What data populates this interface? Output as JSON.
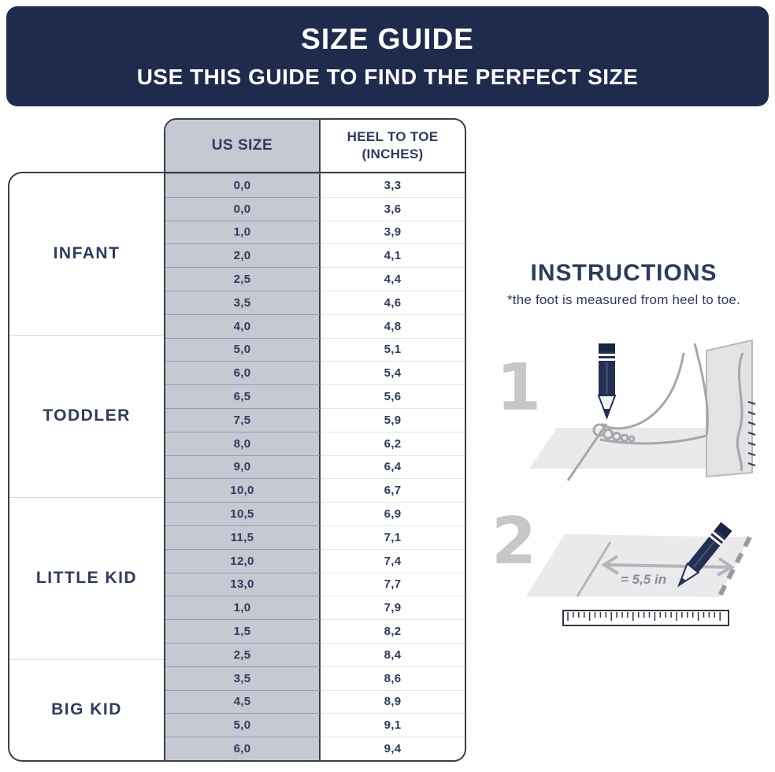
{
  "header": {
    "title": "SIZE GUIDE",
    "subtitle": "USE THIS GUIDE TO FIND THE PERFECT SIZE"
  },
  "table": {
    "col_size_header": "US SIZE",
    "col_length_header_line1": "HEEL TO TOE",
    "col_length_header_line2": "(INCHES)",
    "groups": [
      {
        "label": "INFANT",
        "rows": [
          [
            "0,0",
            "3,3"
          ],
          [
            "0,0",
            "3,6"
          ],
          [
            "1,0",
            "3,9"
          ],
          [
            "2,0",
            "4,1"
          ],
          [
            "2,5",
            "4,4"
          ],
          [
            "3,5",
            "4,6"
          ],
          [
            "4,0",
            "4,8"
          ]
        ]
      },
      {
        "label": "TODDLER",
        "rows": [
          [
            "5,0",
            "5,1"
          ],
          [
            "6,0",
            "5,4"
          ],
          [
            "6,5",
            "5,6"
          ],
          [
            "7,5",
            "5,9"
          ],
          [
            "8,0",
            "6,2"
          ],
          [
            "9,0",
            "6,4"
          ],
          [
            "10,0",
            "6,7"
          ]
        ]
      },
      {
        "label": "LITTLE KID",
        "rows": [
          [
            "10,5",
            "6,9"
          ],
          [
            "11,5",
            "7,1"
          ],
          [
            "12,0",
            "7,4"
          ],
          [
            "13,0",
            "7,7"
          ],
          [
            "1,0",
            "7,9"
          ],
          [
            "1,5",
            "8,2"
          ],
          [
            "2,5",
            "8,4"
          ]
        ]
      },
      {
        "label": "BIG KID",
        "rows": [
          [
            "3,5",
            "8,6"
          ],
          [
            "4,5",
            "8,9"
          ],
          [
            "5,0",
            "9,1"
          ],
          [
            "6,0",
            "9,4"
          ]
        ]
      }
    ]
  },
  "instructions": {
    "title": "INSTRUCTIONS",
    "note": "*the foot is measured from heel to toe.",
    "step1_number": "1",
    "step2_number": "2",
    "measurement_label": "= 5,5 in"
  },
  "colors": {
    "header_bg": "#1e2b4d",
    "text_navy": "#2e3b5e",
    "size_col_bg": "#c6c8d2",
    "border_dark": "#3a3e48",
    "divider_light": "#dadade",
    "row_divider_gray": "#989cab",
    "row_divider_white": "#e6e6ea",
    "paper_gray": "#eaeaec",
    "stroke_gray": "#a7a7ab",
    "numeral_gray": "#c7c7ca",
    "pencil_navy": "#223054"
  }
}
